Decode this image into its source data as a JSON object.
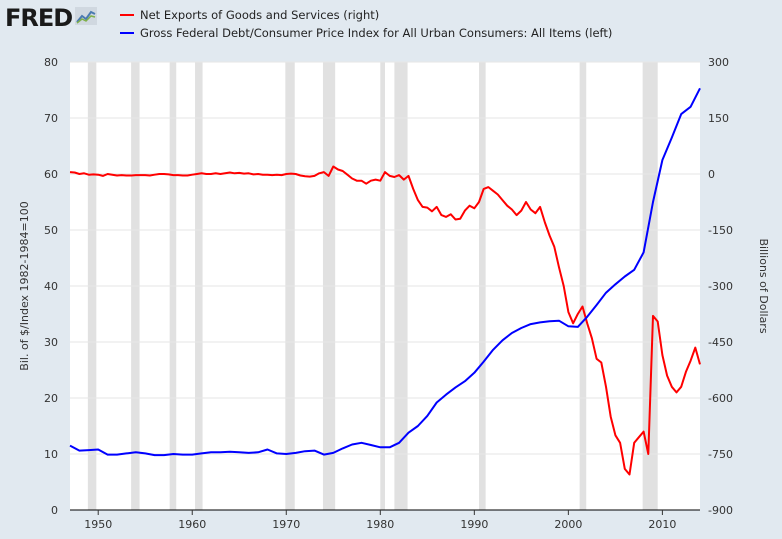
{
  "header": {
    "logo_text": "FRED",
    "logo_icon": "chart-line-icon"
  },
  "colors": {
    "background": "#e1e9f0",
    "plot_background": "#ffffff",
    "recession": "#e1e1e1",
    "series_right": "#ff0000",
    "series_left": "#0000ff"
  },
  "chart_data": {
    "type": "line",
    "series": [
      {
        "name": "Net Exports of Goods and Services (right)",
        "axis": "right",
        "color": "#ff0000",
        "points": [
          [
            1947.0,
            5
          ],
          [
            1947.5,
            4
          ],
          [
            1948.0,
            0
          ],
          [
            1948.5,
            2
          ],
          [
            1949.0,
            -2
          ],
          [
            1949.5,
            -1
          ],
          [
            1950.0,
            -2
          ],
          [
            1950.5,
            -5
          ],
          [
            1951.0,
            0
          ],
          [
            1951.5,
            -2
          ],
          [
            1952.0,
            -4
          ],
          [
            1952.5,
            -3
          ],
          [
            1953.0,
            -4
          ],
          [
            1953.5,
            -4
          ],
          [
            1954.0,
            -3
          ],
          [
            1954.5,
            -3
          ],
          [
            1955.0,
            -3
          ],
          [
            1955.5,
            -4
          ],
          [
            1956.0,
            -2
          ],
          [
            1956.5,
            0
          ],
          [
            1957.0,
            0
          ],
          [
            1957.5,
            -1
          ],
          [
            1958.0,
            -3
          ],
          [
            1958.5,
            -3
          ],
          [
            1959.0,
            -4
          ],
          [
            1959.5,
            -4
          ],
          [
            1960.0,
            -2
          ],
          [
            1960.5,
            0
          ],
          [
            1961.0,
            2
          ],
          [
            1961.5,
            0
          ],
          [
            1962.0,
            0
          ],
          [
            1962.5,
            2
          ],
          [
            1963.0,
            0
          ],
          [
            1963.5,
            2
          ],
          [
            1964.0,
            4
          ],
          [
            1964.5,
            2
          ],
          [
            1965.0,
            3
          ],
          [
            1965.5,
            1
          ],
          [
            1966.0,
            2
          ],
          [
            1966.5,
            -1
          ],
          [
            1967.0,
            0
          ],
          [
            1967.5,
            -2
          ],
          [
            1968.0,
            -2
          ],
          [
            1968.5,
            -3
          ],
          [
            1969.0,
            -2
          ],
          [
            1969.5,
            -3
          ],
          [
            1970.0,
            0
          ],
          [
            1970.5,
            1
          ],
          [
            1971.0,
            0
          ],
          [
            1971.5,
            -4
          ],
          [
            1972.0,
            -6
          ],
          [
            1972.5,
            -7
          ],
          [
            1973.0,
            -5
          ],
          [
            1973.5,
            2
          ],
          [
            1974.0,
            5
          ],
          [
            1974.5,
            -5
          ],
          [
            1975.0,
            20
          ],
          [
            1975.5,
            12
          ],
          [
            1976.0,
            8
          ],
          [
            1976.5,
            -2
          ],
          [
            1977.0,
            -12
          ],
          [
            1977.5,
            -18
          ],
          [
            1978.0,
            -18
          ],
          [
            1978.5,
            -26
          ],
          [
            1979.0,
            -18
          ],
          [
            1979.5,
            -15
          ],
          [
            1980.0,
            -18
          ],
          [
            1980.5,
            5
          ],
          [
            1981.0,
            -5
          ],
          [
            1981.5,
            -8
          ],
          [
            1982.0,
            -3
          ],
          [
            1982.5,
            -15
          ],
          [
            1983.0,
            -5
          ],
          [
            1983.5,
            -40
          ],
          [
            1984.0,
            -70
          ],
          [
            1984.5,
            -88
          ],
          [
            1985.0,
            -90
          ],
          [
            1985.5,
            -100
          ],
          [
            1986.0,
            -88
          ],
          [
            1986.5,
            -110
          ],
          [
            1987.0,
            -115
          ],
          [
            1987.5,
            -108
          ],
          [
            1988.0,
            -122
          ],
          [
            1988.5,
            -120
          ],
          [
            1989.0,
            -98
          ],
          [
            1989.5,
            -85
          ],
          [
            1990.0,
            -92
          ],
          [
            1990.5,
            -75
          ],
          [
            1991.0,
            -40
          ],
          [
            1991.5,
            -35
          ],
          [
            1992.0,
            -45
          ],
          [
            1992.5,
            -55
          ],
          [
            1993.0,
            -70
          ],
          [
            1993.5,
            -85
          ],
          [
            1994.0,
            -95
          ],
          [
            1994.5,
            -110
          ],
          [
            1995.0,
            -98
          ],
          [
            1995.5,
            -75
          ],
          [
            1996.0,
            -95
          ],
          [
            1996.5,
            -105
          ],
          [
            1997.0,
            -88
          ],
          [
            1997.5,
            -130
          ],
          [
            1998.0,
            -165
          ],
          [
            1998.5,
            -195
          ],
          [
            1999.0,
            -250
          ],
          [
            1999.5,
            -300
          ],
          [
            2000.0,
            -370
          ],
          [
            2000.5,
            -400
          ],
          [
            2001.0,
            -375
          ],
          [
            2001.5,
            -355
          ],
          [
            2002.0,
            -400
          ],
          [
            2002.5,
            -440
          ],
          [
            2003.0,
            -495
          ],
          [
            2003.5,
            -505
          ],
          [
            2004.0,
            -570
          ],
          [
            2004.5,
            -650
          ],
          [
            2005.0,
            -700
          ],
          [
            2005.5,
            -720
          ],
          [
            2006.0,
            -790
          ],
          [
            2006.5,
            -805
          ],
          [
            2007.0,
            -720
          ],
          [
            2007.5,
            -705
          ],
          [
            2008.0,
            -690
          ],
          [
            2008.5,
            -750
          ],
          [
            2009.0,
            -380
          ],
          [
            2009.5,
            -395
          ],
          [
            2010.0,
            -485
          ],
          [
            2010.5,
            -540
          ],
          [
            2011.0,
            -570
          ],
          [
            2011.5,
            -585
          ],
          [
            2012.0,
            -570
          ],
          [
            2012.5,
            -530
          ],
          [
            2013.0,
            -500
          ],
          [
            2013.5,
            -465
          ],
          [
            2014.0,
            -510
          ]
        ]
      },
      {
        "name": "Gross Federal Debt/Consumer Price Index for All Urban Consumers: All Items (left)",
        "axis": "left",
        "color": "#0000ff",
        "points": [
          [
            1947.0,
            11.5
          ],
          [
            1948.0,
            10.6
          ],
          [
            1949.0,
            10.7
          ],
          [
            1950.0,
            10.8
          ],
          [
            1951.0,
            9.9
          ],
          [
            1952.0,
            9.9
          ],
          [
            1953.0,
            10.1
          ],
          [
            1954.0,
            10.3
          ],
          [
            1955.0,
            10.1
          ],
          [
            1956.0,
            9.8
          ],
          [
            1957.0,
            9.8
          ],
          [
            1958.0,
            10.0
          ],
          [
            1959.0,
            9.9
          ],
          [
            1960.0,
            9.9
          ],
          [
            1961.0,
            10.1
          ],
          [
            1962.0,
            10.3
          ],
          [
            1963.0,
            10.3
          ],
          [
            1964.0,
            10.4
          ],
          [
            1965.0,
            10.3
          ],
          [
            1966.0,
            10.2
          ],
          [
            1967.0,
            10.3
          ],
          [
            1968.0,
            10.8
          ],
          [
            1969.0,
            10.1
          ],
          [
            1970.0,
            10.0
          ],
          [
            1971.0,
            10.2
          ],
          [
            1972.0,
            10.5
          ],
          [
            1973.0,
            10.6
          ],
          [
            1974.0,
            9.9
          ],
          [
            1975.0,
            10.2
          ],
          [
            1976.0,
            11.0
          ],
          [
            1977.0,
            11.7
          ],
          [
            1978.0,
            12.0
          ],
          [
            1979.0,
            11.6
          ],
          [
            1980.0,
            11.2
          ],
          [
            1981.0,
            11.2
          ],
          [
            1982.0,
            12.0
          ],
          [
            1983.0,
            13.8
          ],
          [
            1984.0,
            15.0
          ],
          [
            1985.0,
            16.8
          ],
          [
            1986.0,
            19.2
          ],
          [
            1987.0,
            20.6
          ],
          [
            1988.0,
            21.9
          ],
          [
            1989.0,
            23.0
          ],
          [
            1990.0,
            24.5
          ],
          [
            1991.0,
            26.5
          ],
          [
            1992.0,
            28.6
          ],
          [
            1993.0,
            30.3
          ],
          [
            1994.0,
            31.6
          ],
          [
            1995.0,
            32.5
          ],
          [
            1996.0,
            33.2
          ],
          [
            1997.0,
            33.5
          ],
          [
            1998.0,
            33.7
          ],
          [
            1999.0,
            33.8
          ],
          [
            2000.0,
            32.8
          ],
          [
            2001.0,
            32.7
          ],
          [
            2002.0,
            34.5
          ],
          [
            2003.0,
            36.6
          ],
          [
            2004.0,
            38.8
          ],
          [
            2005.0,
            40.3
          ],
          [
            2006.0,
            41.7
          ],
          [
            2007.0,
            42.9
          ],
          [
            2008.0,
            46.0
          ],
          [
            2009.0,
            55.0
          ],
          [
            2010.0,
            62.5
          ],
          [
            2011.0,
            66.5
          ],
          [
            2012.0,
            70.7
          ],
          [
            2013.0,
            72.0
          ],
          [
            2014.0,
            75.3
          ]
        ]
      }
    ],
    "recessions": [
      [
        1948.9,
        1949.8
      ],
      [
        1953.5,
        1954.4
      ],
      [
        1957.6,
        1958.3
      ],
      [
        1960.3,
        1961.1
      ],
      [
        1969.9,
        1970.9
      ],
      [
        1973.9,
        1975.2
      ],
      [
        1980.0,
        1980.5
      ],
      [
        1981.5,
        1982.9
      ],
      [
        1990.5,
        1991.2
      ],
      [
        2001.2,
        2001.9
      ],
      [
        2007.9,
        2009.5
      ]
    ],
    "x_range": [
      1947,
      2014
    ],
    "x_ticks": [
      "1950",
      "1960",
      "1970",
      "1980",
      "1990",
      "2000",
      "2010"
    ],
    "x_tick_values": [
      1950,
      1960,
      1970,
      1980,
      1990,
      2000,
      2010
    ],
    "y_left": {
      "label": "Bil. of $/Index 1982-1984=100",
      "range": [
        0,
        80
      ],
      "ticks": [
        "0",
        "10",
        "20",
        "30",
        "40",
        "50",
        "60",
        "70",
        "80"
      ],
      "tick_values": [
        0,
        10,
        20,
        30,
        40,
        50,
        60,
        70,
        80
      ]
    },
    "y_right": {
      "label": "Billions of Dollars",
      "range": [
        -900,
        300
      ],
      "ticks": [
        "-900",
        "-750",
        "-600",
        "-450",
        "-300",
        "-150",
        "0",
        "150",
        "300"
      ],
      "tick_values": [
        -900,
        -750,
        -600,
        -450,
        -300,
        -150,
        0,
        150,
        300
      ]
    },
    "grid": true,
    "legend_position": "top"
  }
}
